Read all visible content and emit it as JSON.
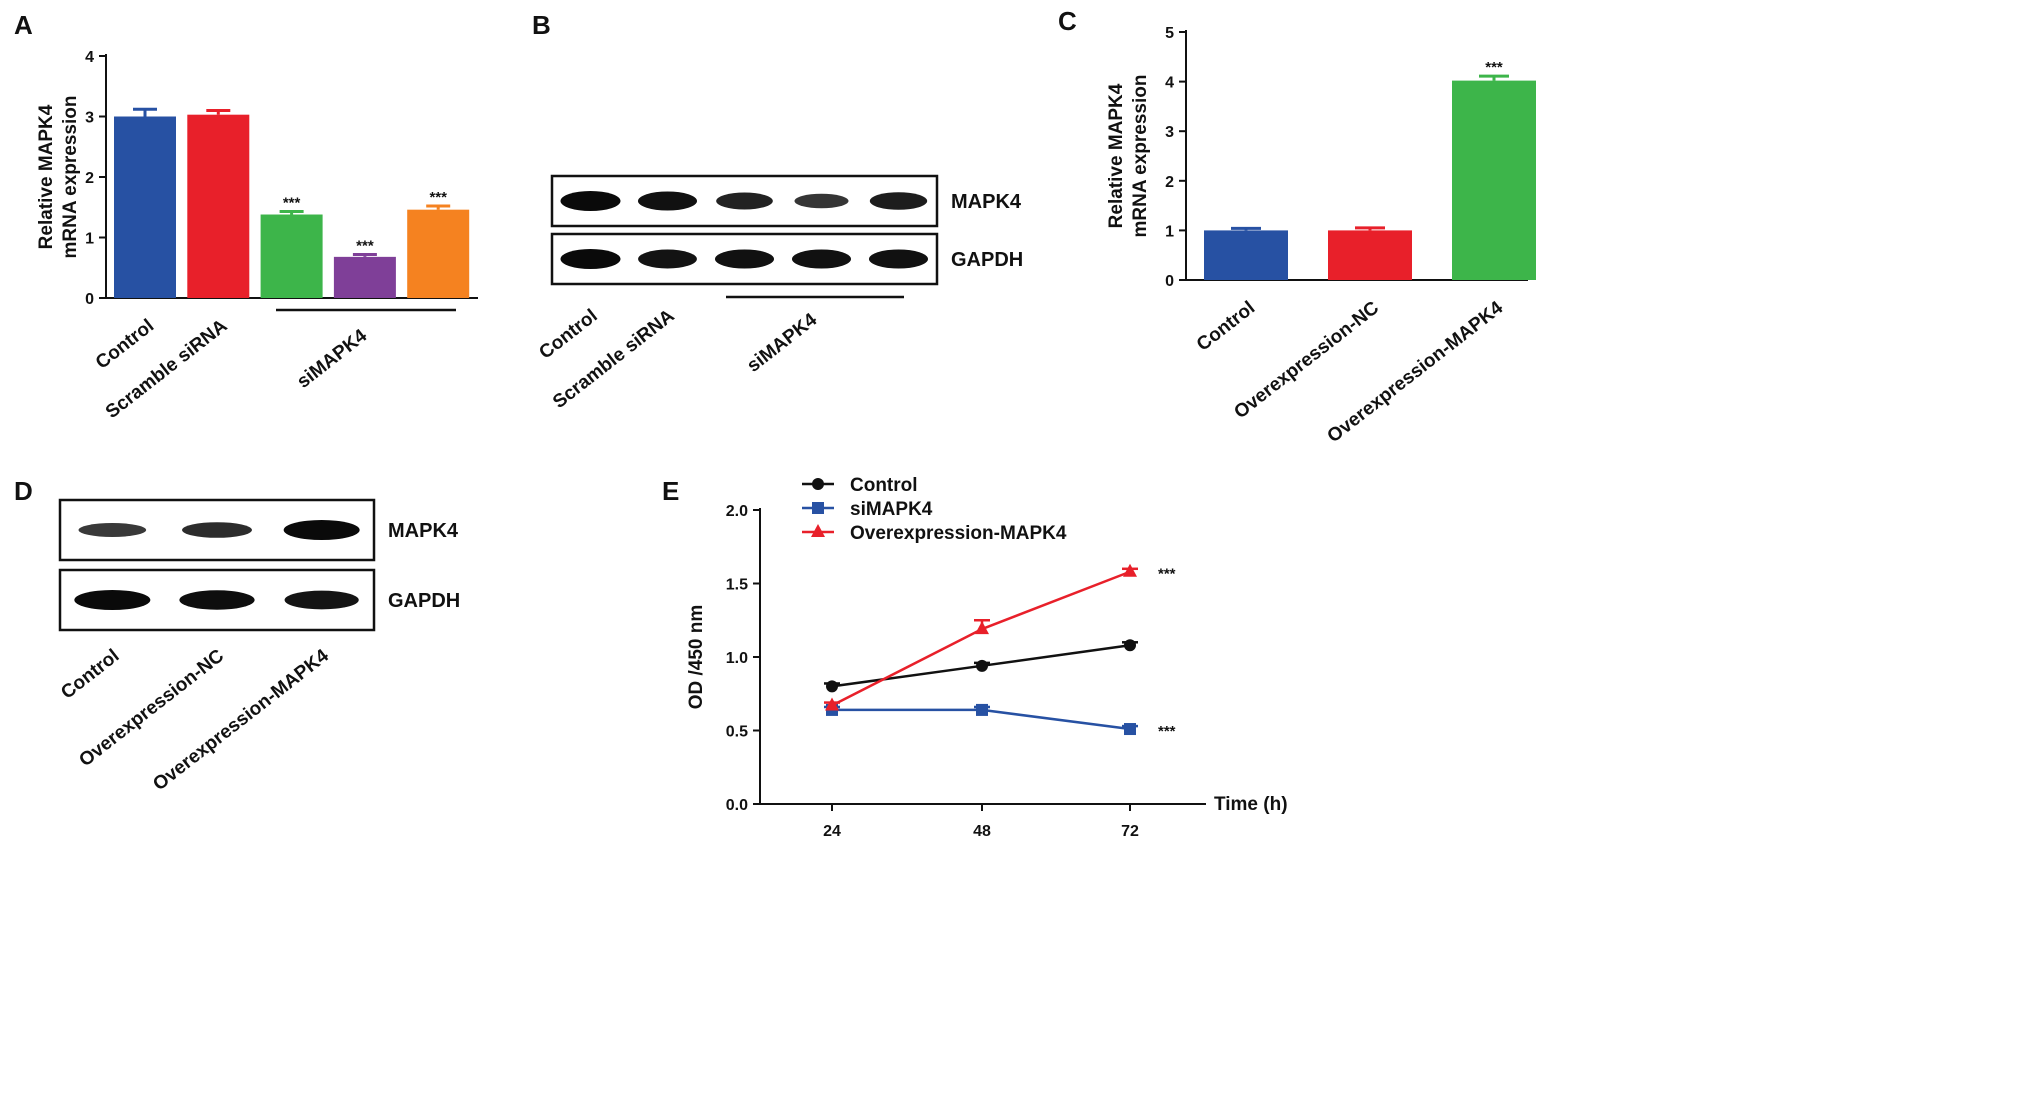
{
  "panels": {
    "A": "A",
    "B": "B",
    "C": "C",
    "D": "D",
    "E": "E"
  },
  "chart_data": [
    {
      "id": "A",
      "type": "bar",
      "ylabel_lines": [
        "Relative MAPK4",
        "mRNA expression"
      ],
      "ylim": [
        0,
        4
      ],
      "yticks": [
        0,
        1,
        2,
        3,
        4
      ],
      "categories": [
        "Control",
        "Scramble siRNA",
        "",
        "",
        ""
      ],
      "group_label": "siMAPK4",
      "values": [
        3.0,
        3.03,
        1.38,
        0.68,
        1.46
      ],
      "errors": [
        0.12,
        0.07,
        0.05,
        0.04,
        0.06
      ],
      "colors": [
        "#2751a3",
        "#e8202a",
        "#3db54a",
        "#7f3f98",
        "#f58220"
      ],
      "significance": [
        "",
        "",
        "***",
        "***",
        "***"
      ]
    },
    {
      "id": "C",
      "type": "bar",
      "ylabel_lines": [
        "Relative MAPK4",
        "mRNA expression"
      ],
      "ylim": [
        0,
        5
      ],
      "yticks": [
        0,
        1,
        2,
        3,
        4,
        5
      ],
      "categories": [
        "Control",
        "Overexpression-NC",
        "Overexpression-MAPK4"
      ],
      "values": [
        1.0,
        1.0,
        4.02
      ],
      "errors": [
        0.04,
        0.05,
        0.09
      ],
      "colors": [
        "#2751a3",
        "#e8202a",
        "#3db54a"
      ],
      "significance": [
        "",
        "",
        "***"
      ]
    },
    {
      "id": "E",
      "type": "line",
      "ylabel": "OD /450 nm",
      "xlabel": "Time (h)",
      "ylim": [
        0,
        2.0
      ],
      "yticks": [
        "0.0",
        "0.5",
        "1.0",
        "1.5",
        "2.0"
      ],
      "x": [
        24,
        48,
        72
      ],
      "legend_position": "top-left",
      "series": [
        {
          "name": "Control",
          "values": [
            0.8,
            0.94,
            1.08
          ],
          "errors": [
            0.02,
            0.02,
            0.02
          ],
          "color": "#111111",
          "marker": "circle",
          "significance": ""
        },
        {
          "name": "siMAPK4",
          "values": [
            0.64,
            0.64,
            0.51
          ],
          "errors": [
            0.02,
            0.02,
            0.02
          ],
          "color": "#2751a3",
          "marker": "square",
          "significance": "***"
        },
        {
          "name": "Overexpression-MAPK4",
          "values": [
            0.67,
            1.19,
            1.58
          ],
          "errors": [
            0.02,
            0.06,
            0.02
          ],
          "color": "#e8202a",
          "marker": "triangle",
          "significance": "***"
        }
      ]
    }
  ],
  "blots": {
    "B": {
      "bands": [
        "MAPK4",
        "GAPDH"
      ],
      "lanes": [
        "Control",
        "Scramble siRNA",
        "",
        "",
        ""
      ],
      "group_label": "siMAPK4",
      "intensities": [
        [
          1.0,
          0.92,
          0.72,
          0.5,
          0.78
        ],
        [
          1.0,
          0.9,
          0.92,
          0.92,
          0.92
        ]
      ]
    },
    "D": {
      "bands": [
        "MAPK4",
        "GAPDH"
      ],
      "lanes": [
        "Control",
        "Overexpression-NC",
        "Overexpression-MAPK4"
      ],
      "intensities": [
        [
          0.45,
          0.6,
          1.0
        ],
        [
          1.0,
          0.95,
          0.88
        ]
      ]
    }
  }
}
